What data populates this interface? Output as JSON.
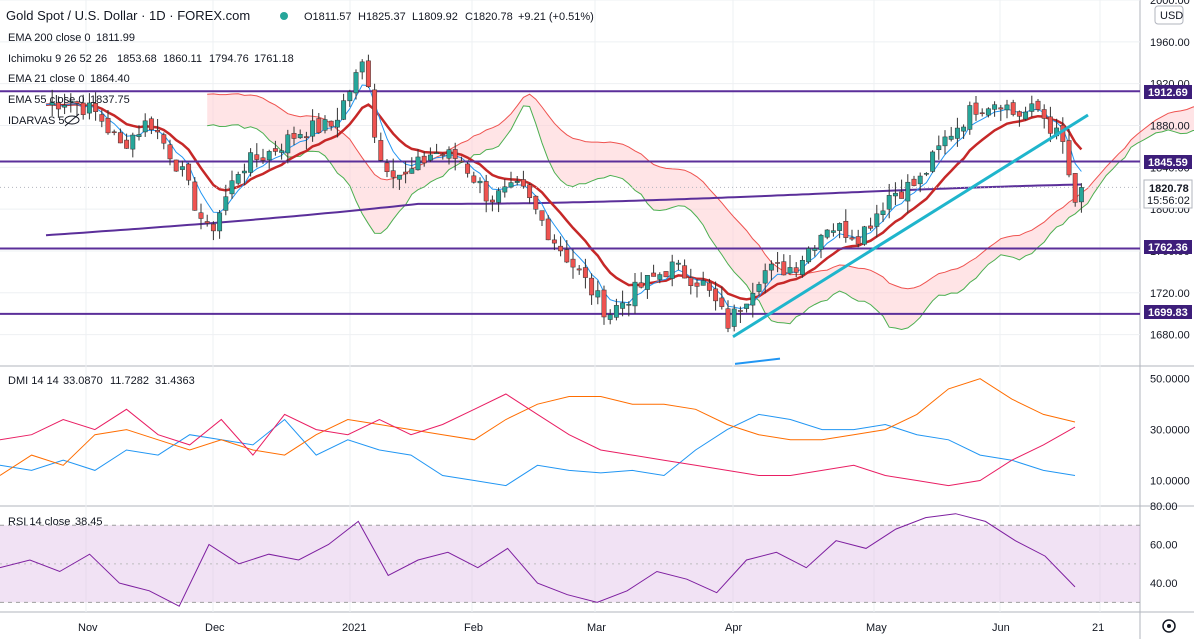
{
  "header": {
    "symbol": "Gold Spot / U.S. Dollar · 1D · FOREX.com",
    "open": "O1811.57",
    "high": "H1825.37",
    "low": "L1809.92",
    "close": "C1820.78",
    "change": "+9.21 (+0.51%)"
  },
  "indicators": {
    "ema200": {
      "label": "EMA 200 close 0",
      "value": "1811.99",
      "color": "#5b2f9a"
    },
    "ichimoku": {
      "label": "Ichimoku 9 26 52 26",
      "v1": "1853.68",
      "v2": "1860.11",
      "v3": "1794.76",
      "v4": "1761.18"
    },
    "ema21": {
      "label": "EMA 21 close 0",
      "value": "1864.40",
      "color": "#2196f3"
    },
    "ema55": {
      "label": "EMA 55 close 0",
      "value": "1837.75",
      "color": "#c62828"
    },
    "darvas": {
      "label": "IDARVAS 5"
    }
  },
  "currency_badge": "USD",
  "price_badges": {
    "last": "1820.78",
    "countdown": "15:56:02",
    "lines": [
      "1912.69",
      "1845.59",
      "1762.36",
      "1699.83"
    ]
  },
  "dmi_panel": {
    "label": "DMI 14 14",
    "v1": "33.0870",
    "v2": "11.7282",
    "v3": "31.4363"
  },
  "rsi_panel": {
    "label": "RSI 14 close",
    "value": "38.45"
  },
  "colors": {
    "up": "#26a69a",
    "down": "#ef5350",
    "horizontal": "#5b2f9a",
    "trendline": "#1fb5cc",
    "kumo_bull": "#c8e6c9",
    "kumo_bear": "#ffcdd2",
    "dmi_plus": "#e91e63",
    "dmi_minus": "#2196f3",
    "adx": "#ff6d00",
    "rsi": "#7e1fa0"
  },
  "chart_data": [
    {
      "type": "candlestick",
      "title": "Gold Spot / U.S. Dollar · 1D · FOREX.com",
      "ylim": [
        1650,
        2000
      ],
      "y_ticks": [
        1680,
        1720,
        1760,
        1800,
        1840,
        1880,
        1920,
        1960,
        2000
      ],
      "x_ticks": [
        "Nov",
        "Dec",
        "2021",
        "Feb",
        "Mar",
        "Apr",
        "May",
        "Jun",
        "21"
      ],
      "horizontal_lines": [
        1912.69,
        1845.59,
        1762.36,
        1699.83
      ],
      "last_price": 1820.78,
      "anchors": [
        {
          "date": "Oct 19",
          "price": 1900
        },
        {
          "date": "Oct 26",
          "price": 1905
        },
        {
          "date": "Nov 4",
          "price": 1890
        },
        {
          "date": "Nov 9",
          "price": 1860
        },
        {
          "date": "Nov 16",
          "price": 1885
        },
        {
          "date": "Nov 23",
          "price": 1840
        },
        {
          "date": "Nov 30",
          "price": 1775
        },
        {
          "date": "Dec 7",
          "price": 1840
        },
        {
          "date": "Dec 14",
          "price": 1855
        },
        {
          "date": "Dec 21",
          "price": 1875
        },
        {
          "date": "Dec 28",
          "price": 1880
        },
        {
          "date": "Jan 5",
          "price": 1945
        },
        {
          "date": "Jan 8",
          "price": 1850
        },
        {
          "date": "Jan 15",
          "price": 1830
        },
        {
          "date": "Jan 22",
          "price": 1855
        },
        {
          "date": "Jan 29",
          "price": 1848
        },
        {
          "date": "Feb 5",
          "price": 1810
        },
        {
          "date": "Feb 12",
          "price": 1820
        },
        {
          "date": "Feb 19",
          "price": 1775
        },
        {
          "date": "Feb 26",
          "price": 1735
        },
        {
          "date": "Mar 4",
          "price": 1700
        },
        {
          "date": "Mar 11",
          "price": 1725
        },
        {
          "date": "Mar 18",
          "price": 1745
        },
        {
          "date": "Mar 25",
          "price": 1730
        },
        {
          "date": "Mar 31",
          "price": 1690
        },
        {
          "date": "Apr 7",
          "price": 1740
        },
        {
          "date": "Apr 14",
          "price": 1745
        },
        {
          "date": "Apr 21",
          "price": 1785
        },
        {
          "date": "Apr 28",
          "price": 1775
        },
        {
          "date": "May 5",
          "price": 1815
        },
        {
          "date": "May 12",
          "price": 1825
        },
        {
          "date": "May 19",
          "price": 1870
        },
        {
          "date": "May 26",
          "price": 1898
        },
        {
          "date": "Jun 1",
          "price": 1905
        },
        {
          "date": "Jun 4",
          "price": 1890
        },
        {
          "date": "Jun 9",
          "price": 1895
        },
        {
          "date": "Jun 14",
          "price": 1860
        },
        {
          "date": "Jun 17",
          "price": 1780
        },
        {
          "date": "Jun 18",
          "price": 1820
        }
      ]
    },
    {
      "type": "line",
      "title": "DMI 14 14",
      "ylim": [
        0,
        55
      ],
      "y_ticks": [
        10,
        30,
        50
      ],
      "series": [
        {
          "name": "+DI",
          "values": [
            16,
            14,
            18,
            14,
            22,
            20,
            28,
            26,
            24,
            34,
            20,
            26,
            22,
            20,
            12,
            10,
            8,
            16,
            14,
            13,
            14,
            12,
            22,
            30,
            36,
            34,
            30,
            30,
            32,
            28,
            26,
            20,
            18,
            14,
            12
          ]
        },
        {
          "name": "-DI",
          "values": [
            12,
            20,
            16,
            28,
            30,
            26,
            22,
            26,
            22,
            20,
            28,
            34,
            32,
            30,
            28,
            26,
            34,
            40,
            43,
            43,
            40,
            40,
            38,
            32,
            28,
            26,
            26,
            28,
            30,
            36,
            46,
            50,
            42,
            36,
            33
          ]
        },
        {
          "name": "ADX",
          "values": [
            26,
            28,
            34,
            30,
            38,
            28,
            24,
            34,
            20,
            36,
            30,
            28,
            34,
            28,
            32,
            38,
            44,
            36,
            28,
            22,
            20,
            18,
            16,
            14,
            12,
            12,
            14,
            16,
            12,
            10,
            8,
            10,
            18,
            24,
            31
          ]
        }
      ]
    },
    {
      "type": "line",
      "title": "RSI 14 close",
      "ylim": [
        25,
        80
      ],
      "y_ticks": [
        40,
        60,
        80
      ],
      "series": [
        {
          "name": "RSI",
          "values": [
            48,
            52,
            46,
            55,
            40,
            36,
            28,
            60,
            50,
            55,
            52,
            60,
            72,
            44,
            52,
            56,
            48,
            58,
            40,
            34,
            30,
            36,
            46,
            42,
            35,
            52,
            56,
            48,
            62,
            58,
            68,
            74,
            76,
            72,
            62,
            54,
            38
          ]
        }
      ]
    }
  ]
}
